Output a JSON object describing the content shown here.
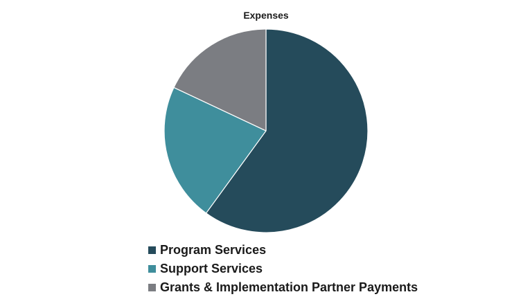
{
  "chart_data": {
    "type": "pie",
    "title": "Expenses",
    "series": [
      {
        "name": "Program Services",
        "value": 60,
        "color": "#254b5b"
      },
      {
        "name": "Support Services",
        "value": 22,
        "color": "#3f8e9c"
      },
      {
        "name": "Grants & Implementation Partner Payments",
        "value": 18,
        "color": "#7b7d82"
      }
    ],
    "start": "12 o'clock",
    "direction": "clockwise",
    "legend_position": "bottom-left"
  }
}
